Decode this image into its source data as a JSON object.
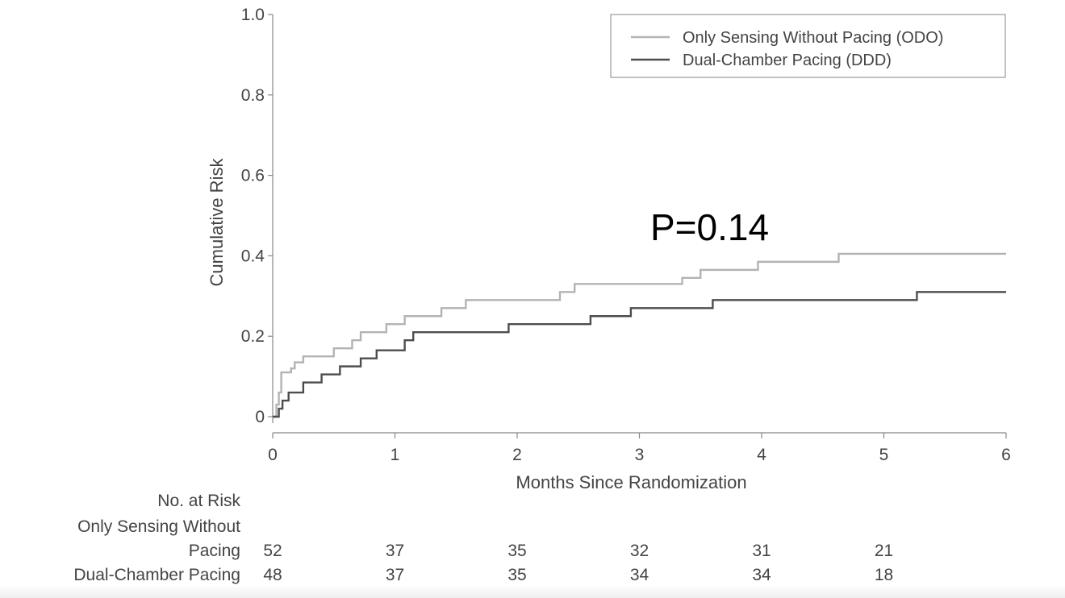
{
  "chart_data": {
    "type": "line",
    "step": true,
    "xlabel": "Months Since Randomization",
    "ylabel": "Cumulative Risk",
    "xlim": [
      0,
      6
    ],
    "ylim": [
      0,
      1.0
    ],
    "x_ticks": [
      0,
      1,
      2,
      3,
      4,
      5,
      6
    ],
    "x_tick_labels": [
      "0",
      "1",
      "2",
      "3",
      "4",
      "5",
      "6"
    ],
    "y_ticks": [
      0,
      0.2,
      0.4,
      0.6,
      0.8,
      1.0
    ],
    "y_tick_labels": [
      "0",
      "0.2",
      "0.4",
      "0.6",
      "0.8",
      "1.0"
    ],
    "grid": false,
    "legend_position": "top-right",
    "annotation": "P=0.14",
    "series": [
      {
        "name": "Only Sensing Without Pacing (ODO)",
        "color": "#b3b3b3",
        "points": [
          [
            0,
            0
          ],
          [
            0.03,
            0.03
          ],
          [
            0.05,
            0.06
          ],
          [
            0.07,
            0.11
          ],
          [
            0.15,
            0.12
          ],
          [
            0.18,
            0.135
          ],
          [
            0.25,
            0.15
          ],
          [
            0.5,
            0.17
          ],
          [
            0.65,
            0.19
          ],
          [
            0.72,
            0.21
          ],
          [
            0.93,
            0.23
          ],
          [
            1.08,
            0.25
          ],
          [
            1.38,
            0.27
          ],
          [
            1.58,
            0.29
          ],
          [
            2.35,
            0.31
          ],
          [
            2.47,
            0.33
          ],
          [
            3.35,
            0.345
          ],
          [
            3.5,
            0.365
          ],
          [
            3.97,
            0.385
          ],
          [
            4.63,
            0.405
          ],
          [
            6,
            0.405
          ]
        ]
      },
      {
        "name": "Dual-Chamber Pacing (DDD)",
        "color": "#4d4d4d",
        "points": [
          [
            0,
            0
          ],
          [
            0.05,
            0.02
          ],
          [
            0.08,
            0.04
          ],
          [
            0.13,
            0.06
          ],
          [
            0.25,
            0.085
          ],
          [
            0.4,
            0.105
          ],
          [
            0.55,
            0.125
          ],
          [
            0.72,
            0.145
          ],
          [
            0.85,
            0.165
          ],
          [
            1.08,
            0.19
          ],
          [
            1.15,
            0.21
          ],
          [
            1.93,
            0.23
          ],
          [
            2.6,
            0.25
          ],
          [
            2.93,
            0.27
          ],
          [
            3.6,
            0.29
          ],
          [
            5.27,
            0.31
          ],
          [
            6,
            0.31
          ]
        ]
      }
    ],
    "risk_table": {
      "title": "No. at Risk",
      "x": [
        0,
        1,
        2,
        3,
        4,
        5
      ],
      "rows": [
        {
          "label_lines": [
            "Only Sensing Without",
            "Pacing"
          ],
          "values": [
            "52",
            "37",
            "35",
            "32",
            "31",
            "21"
          ]
        },
        {
          "label_lines": [
            "Dual-Chamber Pacing"
          ],
          "values": [
            "48",
            "37",
            "35",
            "34",
            "34",
            "18"
          ]
        }
      ]
    }
  }
}
